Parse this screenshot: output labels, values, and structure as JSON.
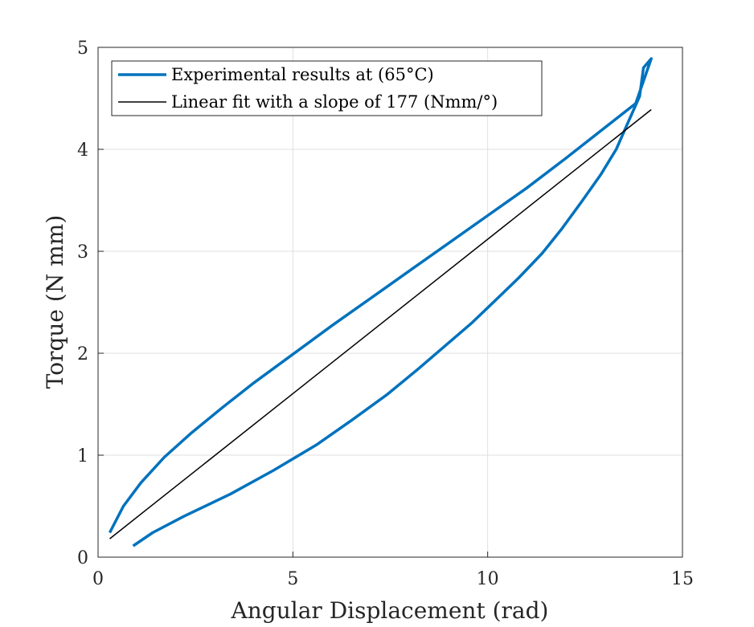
{
  "chart_data": {
    "type": "line",
    "xlabel": "Angular Displacement (rad)",
    "ylabel": "Torque (N mm)",
    "xlim": [
      0,
      15
    ],
    "ylim": [
      0,
      5
    ],
    "xticks": [
      "0",
      "5",
      "10",
      "15"
    ],
    "yticks": [
      "0",
      "1",
      "2",
      "3",
      "4",
      "5"
    ],
    "grid": true,
    "legend_position": "top-left",
    "series": [
      {
        "name": "Experimental results at (65°C)",
        "color": "#0072BD",
        "x": [
          0.3,
          0.65,
          1.1,
          1.7,
          2.4,
          3.2,
          4.0,
          5.0,
          6.0,
          7.0,
          8.0,
          9.0,
          10.0,
          11.0,
          12.0,
          13.0,
          13.8,
          14.2,
          14.0,
          13.9,
          13.6,
          13.3,
          12.9,
          12.4,
          11.9,
          11.4,
          10.8,
          10.2,
          9.6,
          8.9,
          8.2,
          7.4,
          6.5,
          5.6,
          4.5,
          3.4,
          2.2,
          1.4,
          0.9
        ],
        "y": [
          0.24,
          0.5,
          0.73,
          0.98,
          1.22,
          1.47,
          1.71,
          1.99,
          2.27,
          2.54,
          2.81,
          3.08,
          3.35,
          3.62,
          3.91,
          4.21,
          4.45,
          4.89,
          4.8,
          4.52,
          4.26,
          4.0,
          3.75,
          3.48,
          3.22,
          2.98,
          2.74,
          2.52,
          2.3,
          2.07,
          1.84,
          1.59,
          1.34,
          1.1,
          0.85,
          0.62,
          0.4,
          0.24,
          0.11
        ]
      },
      {
        "name": "Linear fit with a slope of 177 (Nmm/°)",
        "color": "#000000",
        "x": [
          0.3,
          14.2
        ],
        "y": [
          0.18,
          4.39
        ]
      }
    ]
  }
}
